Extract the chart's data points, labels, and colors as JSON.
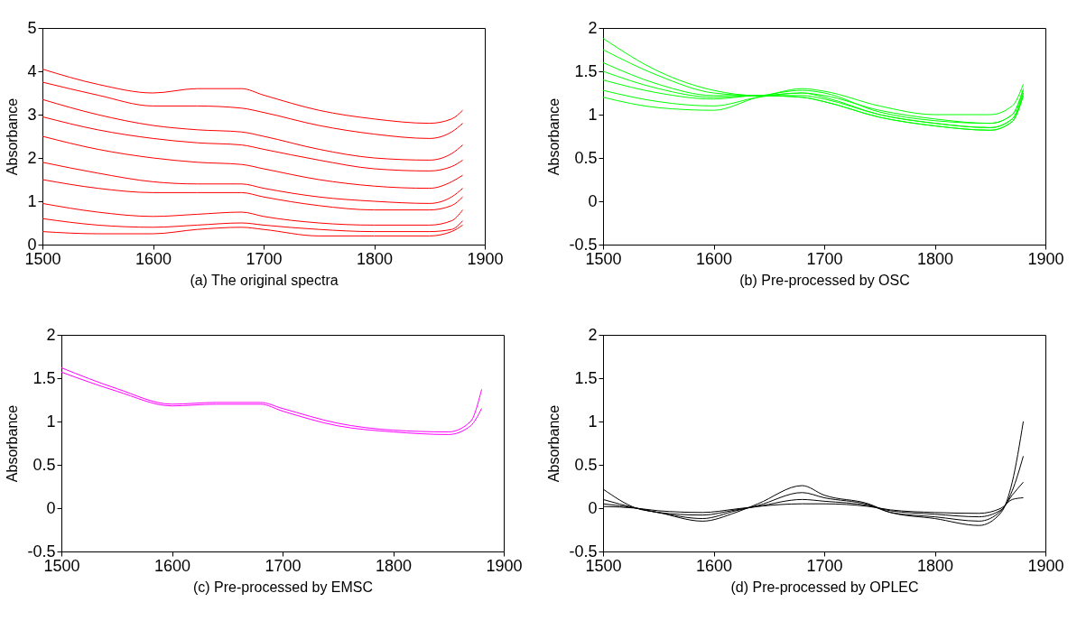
{
  "chart_data": [
    {
      "type": "line",
      "xlabel": "(a) The original spectra",
      "ylabel": "Absorbance",
      "x": [
        1500,
        1550,
        1600,
        1640,
        1680,
        1700,
        1750,
        1800,
        1850,
        1870,
        1880
      ],
      "xlim": [
        1500,
        1900
      ],
      "xticks": [
        1500,
        1600,
        1700,
        1800,
        1900
      ],
      "ylim": [
        0,
        5
      ],
      "yticks": [
        0,
        1,
        2,
        3,
        4,
        5
      ],
      "grid": false,
      "series": [
        {
          "color": "#ff0000",
          "values": [
            4.05,
            3.7,
            3.5,
            3.6,
            3.6,
            3.45,
            3.1,
            2.9,
            2.8,
            2.9,
            3.1
          ]
        },
        {
          "color": "#ff0000",
          "values": [
            3.75,
            3.45,
            3.2,
            3.2,
            3.15,
            3.05,
            2.75,
            2.55,
            2.45,
            2.6,
            2.8
          ]
        },
        {
          "color": "#ff0000",
          "values": [
            3.35,
            3.0,
            2.75,
            2.65,
            2.6,
            2.5,
            2.2,
            2.0,
            1.95,
            2.1,
            2.3
          ]
        },
        {
          "color": "#ff0000",
          "values": [
            2.95,
            2.65,
            2.45,
            2.35,
            2.3,
            2.2,
            1.95,
            1.75,
            1.7,
            1.8,
            1.95
          ]
        },
        {
          "color": "#ff0000",
          "values": [
            2.5,
            2.2,
            2.0,
            1.9,
            1.85,
            1.75,
            1.5,
            1.35,
            1.3,
            1.45,
            1.6
          ]
        },
        {
          "color": "#ff0000",
          "values": [
            1.9,
            1.65,
            1.45,
            1.4,
            1.4,
            1.3,
            1.1,
            1.0,
            0.95,
            1.1,
            1.3
          ]
        },
        {
          "color": "#ff0000",
          "values": [
            1.5,
            1.3,
            1.2,
            1.2,
            1.2,
            1.1,
            0.9,
            0.8,
            0.8,
            0.9,
            1.1
          ]
        },
        {
          "color": "#ff0000",
          "values": [
            0.95,
            0.75,
            0.65,
            0.7,
            0.75,
            0.65,
            0.5,
            0.45,
            0.45,
            0.55,
            0.8
          ]
        },
        {
          "color": "#ff0000",
          "values": [
            0.6,
            0.45,
            0.4,
            0.45,
            0.5,
            0.45,
            0.35,
            0.3,
            0.3,
            0.35,
            0.55
          ]
        },
        {
          "color": "#ff0000",
          "values": [
            0.3,
            0.25,
            0.25,
            0.35,
            0.4,
            0.35,
            0.2,
            0.2,
            0.2,
            0.3,
            0.45
          ]
        }
      ]
    },
    {
      "type": "line",
      "xlabel": "(b) Pre-processed by OSC",
      "ylabel": "Absorbance",
      "x": [
        1500,
        1550,
        1600,
        1640,
        1680,
        1700,
        1750,
        1800,
        1850,
        1870,
        1880
      ],
      "xlim": [
        1500,
        1900
      ],
      "xticks": [
        1500,
        1600,
        1700,
        1800,
        1900
      ],
      "ylim": [
        -0.5,
        2
      ],
      "yticks": [
        -0.5,
        0,
        0.5,
        1,
        1.5,
        2
      ],
      "grid": false,
      "series": [
        {
          "color": "#00ff00",
          "values": [
            1.88,
            1.5,
            1.28,
            1.22,
            1.3,
            1.27,
            1.1,
            1.0,
            1.0,
            1.1,
            1.35
          ]
        },
        {
          "color": "#00ff00",
          "values": [
            1.75,
            1.45,
            1.25,
            1.22,
            1.25,
            1.22,
            1.05,
            0.95,
            0.9,
            1.0,
            1.3
          ]
        },
        {
          "color": "#00ff00",
          "values": [
            1.6,
            1.35,
            1.22,
            1.22,
            1.22,
            1.18,
            1.0,
            0.9,
            0.85,
            0.95,
            1.25
          ]
        },
        {
          "color": "#00ff00",
          "values": [
            1.5,
            1.3,
            1.2,
            1.22,
            1.2,
            1.15,
            0.97,
            0.87,
            0.82,
            0.92,
            1.22
          ]
        },
        {
          "color": "#00ff00",
          "values": [
            1.4,
            1.25,
            1.18,
            1.22,
            1.2,
            1.15,
            0.97,
            0.87,
            0.82,
            0.92,
            1.22
          ]
        },
        {
          "color": "#00ff00",
          "values": [
            1.28,
            1.15,
            1.1,
            1.2,
            1.25,
            1.2,
            1.0,
            0.9,
            0.85,
            0.95,
            1.25
          ]
        },
        {
          "color": "#00ff00",
          "values": [
            1.2,
            1.08,
            1.05,
            1.2,
            1.28,
            1.25,
            1.03,
            0.93,
            0.9,
            1.0,
            1.28
          ]
        }
      ]
    },
    {
      "type": "line",
      "xlabel": "(c) Pre-processed by EMSC",
      "ylabel": "Absorbance",
      "x": [
        1500,
        1550,
        1600,
        1640,
        1680,
        1700,
        1750,
        1800,
        1850,
        1870,
        1880
      ],
      "xlim": [
        1500,
        1900
      ],
      "xticks": [
        1500,
        1600,
        1700,
        1800,
        1900
      ],
      "ylim": [
        -0.5,
        2
      ],
      "yticks": [
        -0.5,
        0,
        0.5,
        1,
        1.5,
        2
      ],
      "grid": false,
      "series": [
        {
          "color": "#ff00ff",
          "values": [
            1.62,
            1.38,
            1.2,
            1.22,
            1.22,
            1.15,
            0.98,
            0.9,
            0.88,
            1.0,
            1.37
          ]
        },
        {
          "color": "#ff00ff",
          "values": [
            1.57,
            1.35,
            1.18,
            1.2,
            1.2,
            1.12,
            0.95,
            0.88,
            0.85,
            0.95,
            1.15
          ]
        }
      ]
    },
    {
      "type": "line",
      "xlabel": "(d) Pre-processed by OPLEC",
      "ylabel": "Absorbance",
      "x": [
        1500,
        1530,
        1550,
        1590,
        1620,
        1640,
        1680,
        1700,
        1740,
        1760,
        1800,
        1840,
        1860,
        1870,
        1880
      ],
      "xlim": [
        1500,
        1900
      ],
      "xticks": [
        1500,
        1600,
        1700,
        1800,
        1900
      ],
      "ylim": [
        -0.5,
        2
      ],
      "yticks": [
        -0.5,
        0,
        0.5,
        1,
        1.5,
        2
      ],
      "grid": false,
      "series": [
        {
          "color": "#000000",
          "values": [
            0.22,
            0.0,
            -0.05,
            -0.15,
            -0.05,
            0.05,
            0.26,
            0.15,
            0.05,
            -0.05,
            -0.12,
            -0.2,
            -0.05,
            0.3,
            1.0
          ]
        },
        {
          "color": "#000000",
          "values": [
            0.1,
            0.0,
            -0.05,
            -0.12,
            -0.03,
            0.03,
            0.18,
            0.12,
            0.04,
            -0.05,
            -0.1,
            -0.15,
            -0.03,
            0.2,
            0.6
          ]
        },
        {
          "color": "#000000",
          "values": [
            0.05,
            0.0,
            -0.05,
            -0.08,
            -0.02,
            0.02,
            0.1,
            0.08,
            0.03,
            -0.03,
            -0.07,
            -0.1,
            -0.02,
            0.15,
            0.3
          ]
        },
        {
          "color": "#000000",
          "values": [
            0.02,
            0.0,
            -0.03,
            -0.05,
            -0.01,
            0.02,
            0.05,
            0.05,
            0.02,
            -0.02,
            -0.05,
            -0.06,
            0.0,
            0.1,
            0.12
          ]
        }
      ]
    }
  ]
}
